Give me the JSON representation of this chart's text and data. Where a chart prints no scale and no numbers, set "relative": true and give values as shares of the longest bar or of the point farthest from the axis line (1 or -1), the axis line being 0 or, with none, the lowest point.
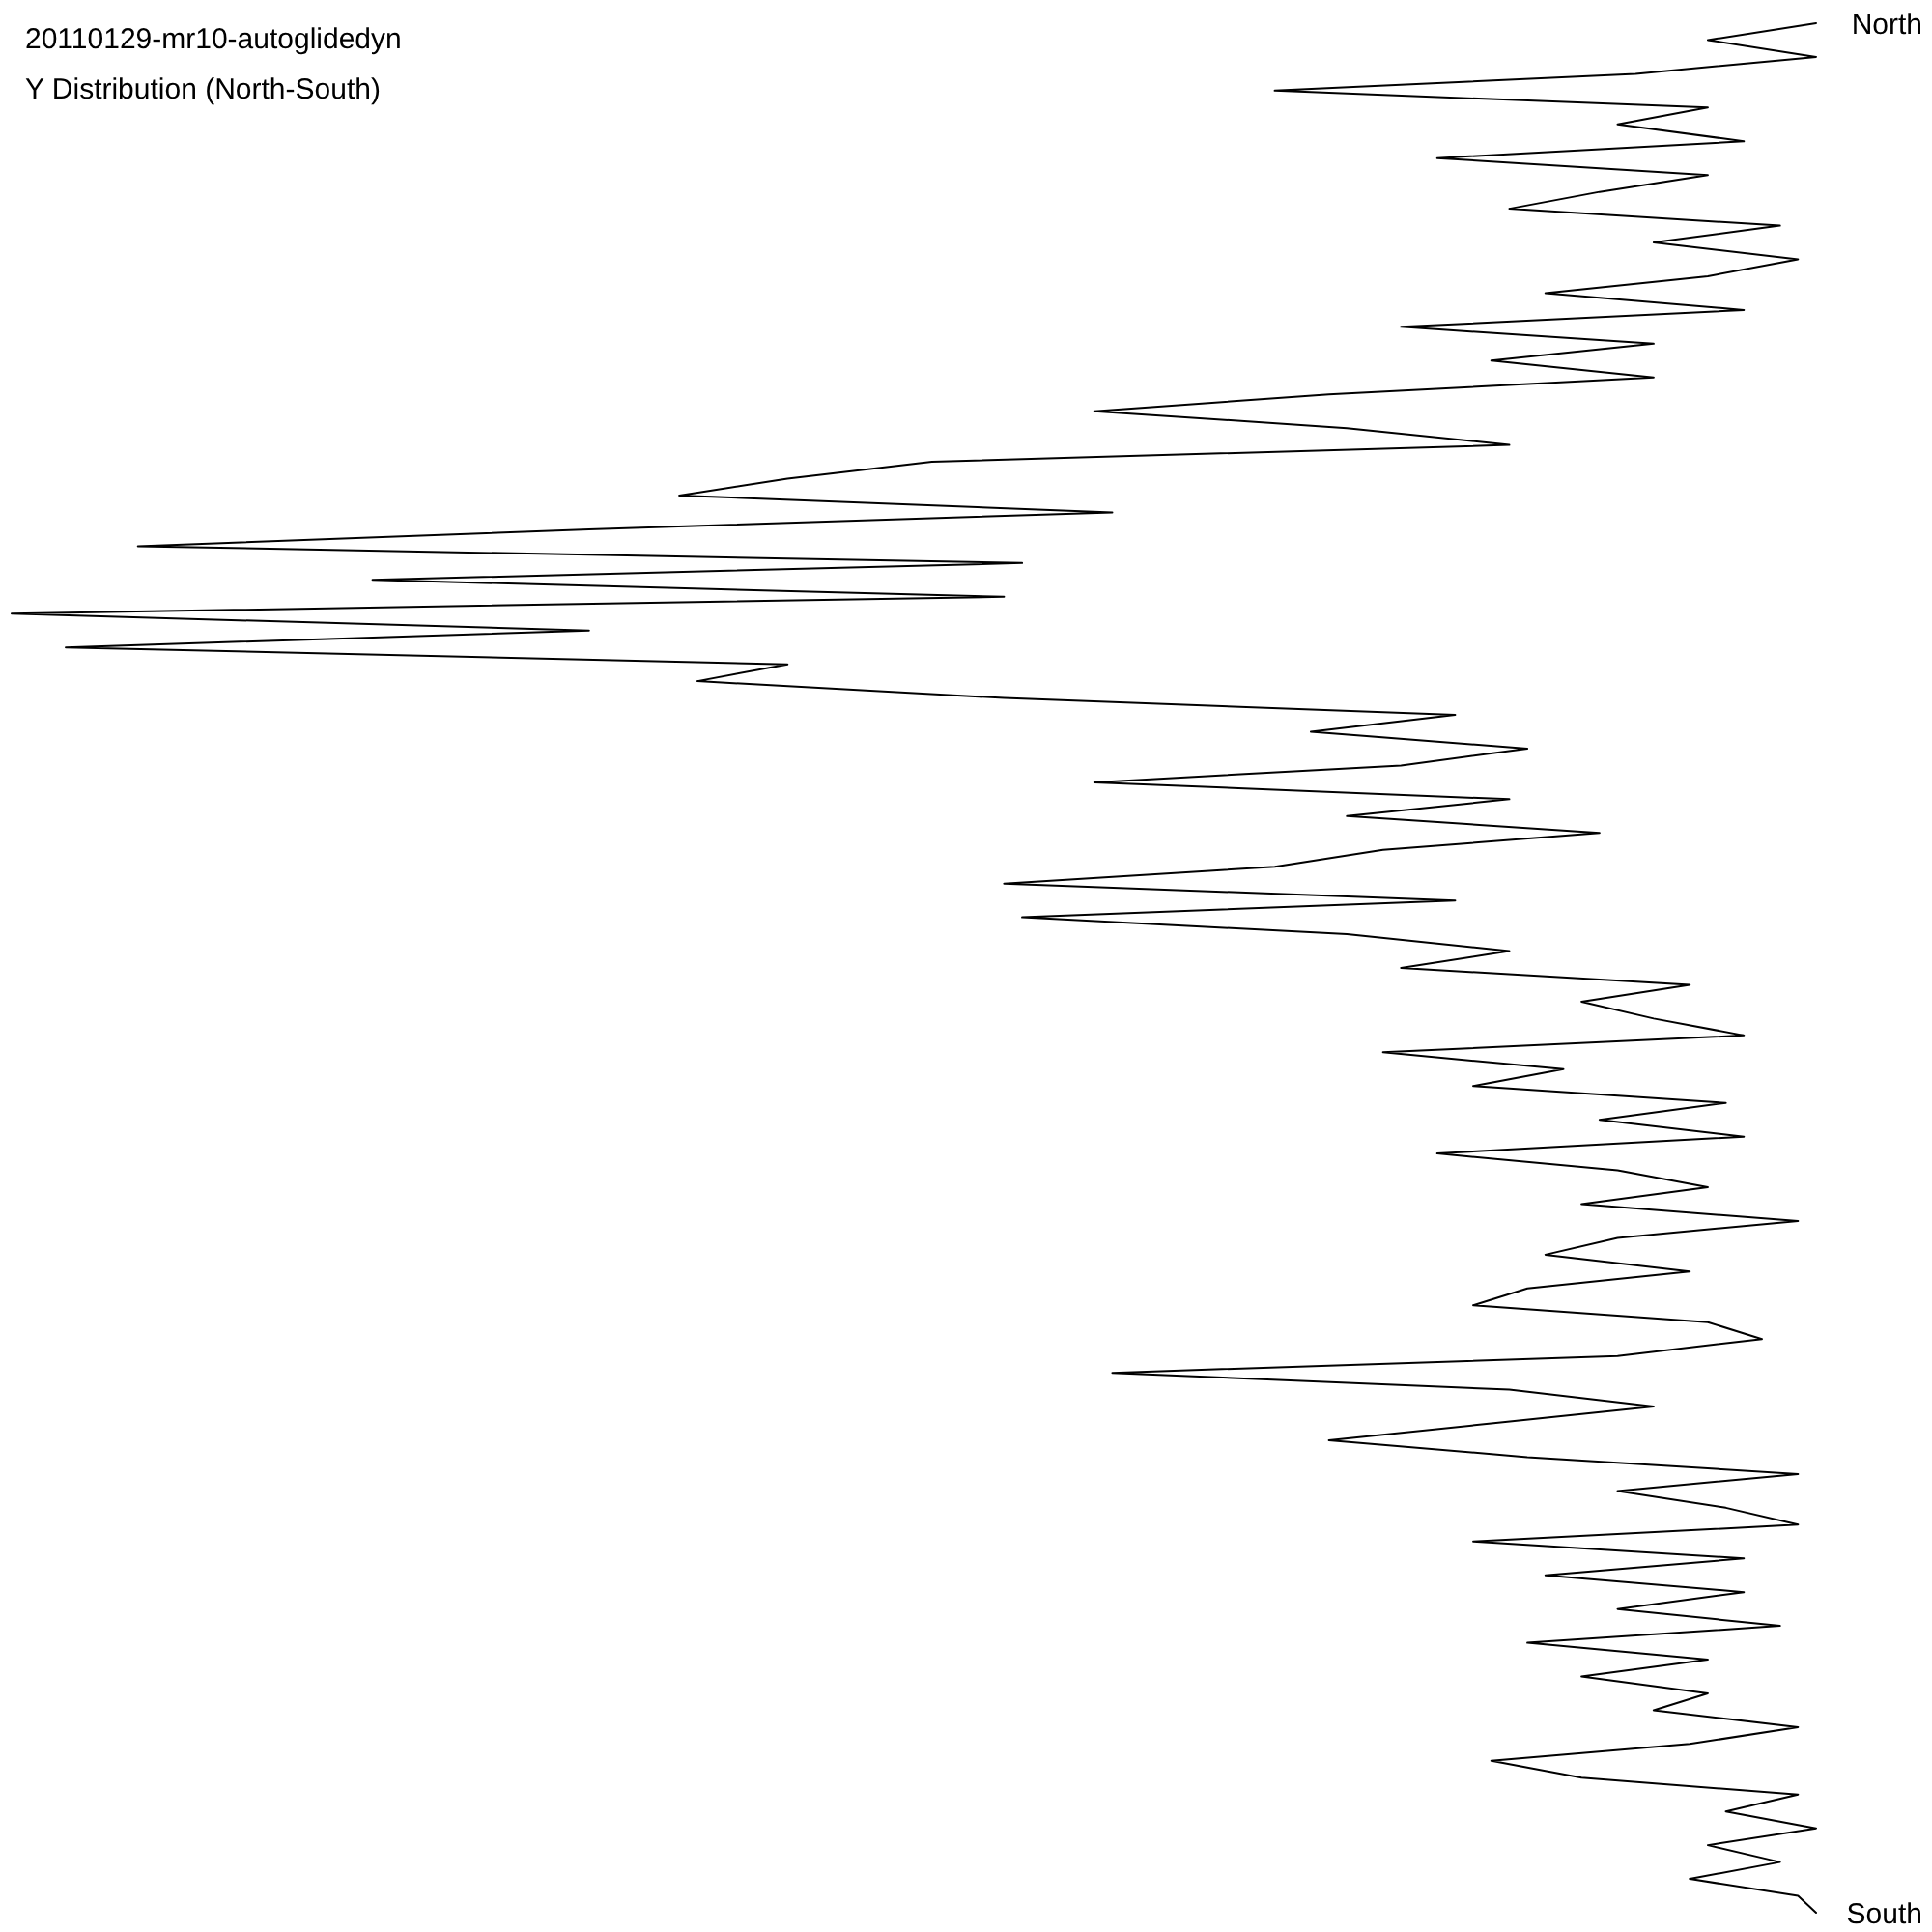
{
  "chart_data": {
    "type": "line",
    "title": "20110129-mr10-autoglidedyn",
    "subtitle": "Y Distribution (North-South)",
    "relative": true,
    "orientation": "horizontal",
    "color": "#000000",
    "categories": [
      "North",
      null,
      null,
      null,
      null,
      null,
      null,
      null,
      null,
      null,
      null,
      null,
      null,
      null,
      null,
      null,
      null,
      null,
      null,
      null,
      null,
      null,
      null,
      null,
      null,
      null,
      null,
      null,
      null,
      null,
      null,
      null,
      null,
      null,
      null,
      null,
      null,
      null,
      null,
      null,
      null,
      null,
      null,
      null,
      null,
      null,
      null,
      null,
      null,
      null,
      null,
      null,
      null,
      null,
      null,
      null,
      null,
      null,
      null,
      null,
      null,
      null,
      null,
      null,
      null,
      null,
      null,
      null,
      null,
      null,
      null,
      null,
      null,
      null,
      null,
      null,
      null,
      null,
      null,
      null,
      null,
      null,
      null,
      null,
      null,
      null,
      null,
      null,
      null,
      null,
      null,
      null,
      null,
      null,
      null,
      null,
      null,
      null,
      null,
      null,
      null,
      null,
      null,
      null,
      null,
      null,
      null,
      null,
      null,
      null,
      null,
      null,
      "South"
    ],
    "values": [
      1,
      0.94,
      1,
      0.9,
      0.7,
      0.94,
      0.89,
      0.96,
      0.79,
      0.94,
      0.88,
      0.83,
      0.98,
      0.91,
      0.99,
      0.94,
      0.85,
      0.96,
      0.77,
      0.91,
      0.82,
      0.91,
      0.73,
      0.6,
      0.74,
      0.83,
      0.51,
      0.43,
      0.37,
      0.61,
      0.32,
      0.07,
      0.56,
      0.2,
      0.55,
      0,
      0.32,
      0.03,
      0.43,
      0.38,
      0.55,
      0.8,
      0.72,
      0.84,
      0.77,
      0.6,
      0.83,
      0.74,
      0.88,
      0.76,
      0.7,
      0.55,
      0.8,
      0.56,
      0.74,
      0.83,
      0.77,
      0.93,
      0.87,
      0.91,
      0.96,
      0.76,
      0.86,
      0.81,
      0.95,
      0.88,
      0.96,
      0.79,
      0.89,
      0.94,
      0.87,
      0.99,
      0.89,
      0.85,
      0.93,
      0.84,
      0.81,
      0.94,
      0.97,
      0.89,
      0.61,
      0.83,
      0.91,
      0.82,
      0.73,
      0.84,
      0.99,
      0.89,
      0.95,
      0.99,
      0.81,
      0.96,
      0.85,
      0.96,
      0.89,
      0.98,
      0.84,
      0.94,
      0.87,
      0.94,
      0.91,
      0.99,
      0.93,
      0.82,
      0.87,
      0.99,
      0.95,
      1,
      0.94,
      0.98,
      0.93,
      0.99,
      1
    ]
  }
}
